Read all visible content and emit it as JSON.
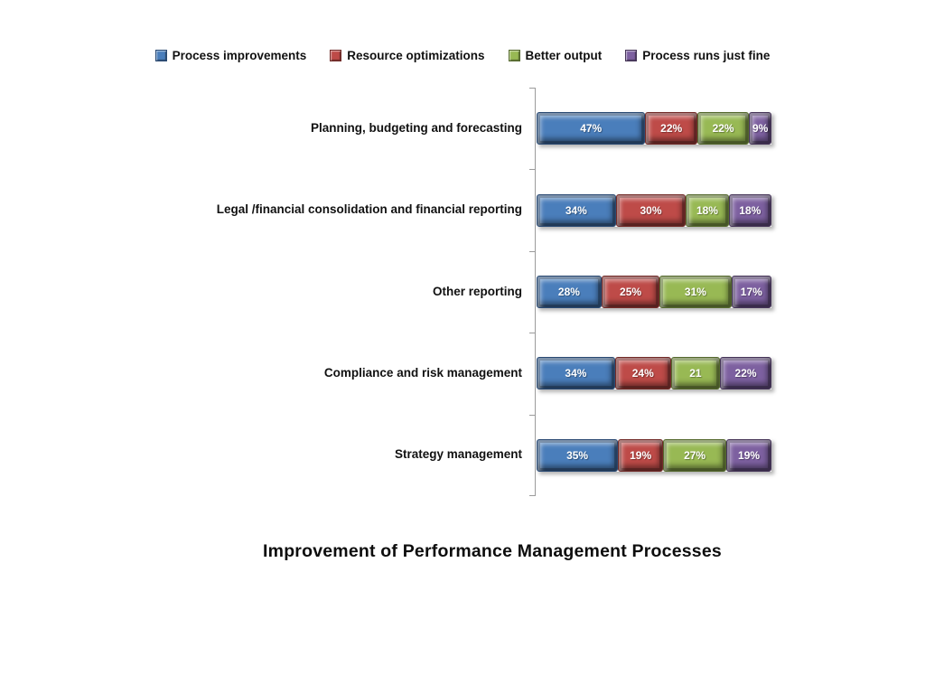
{
  "chart_data": {
    "type": "bar",
    "variant": "stacked-horizontal",
    "title": "Improvement of Performance Management Processes",
    "legend_position": "top",
    "grid": false,
    "xlim": [
      0,
      100
    ],
    "axis_color": "#9b9b9b",
    "categories": [
      "Planning, budgeting and forecasting",
      "Legal /financial consolidation and financial reporting",
      "Other reporting",
      "Compliance and risk management",
      "Strategy management"
    ],
    "series": [
      {
        "name": "Process improvements",
        "color": "#4A7EBB",
        "border_color": "#2A4A73",
        "values": [
          47,
          34,
          28,
          34,
          35
        ],
        "labels": [
          "47%",
          "34%",
          "28%",
          "34%",
          "35%"
        ]
      },
      {
        "name": "Resource optimizations",
        "color": "#BE4B48",
        "border_color": "#722B28",
        "values": [
          22,
          30,
          25,
          24,
          19
        ],
        "labels": [
          "22%",
          "30%",
          "25%",
          "24%",
          "19%"
        ]
      },
      {
        "name": "Better output",
        "color": "#98B954",
        "border_color": "#55692E",
        "values": [
          22,
          18,
          31,
          21,
          27
        ],
        "labels": [
          "22%",
          "18%",
          "31%",
          "21",
          "27%"
        ]
      },
      {
        "name": "Process runs just fine",
        "color": "#7D60A0",
        "border_color": "#463558",
        "values": [
          9,
          18,
          17,
          22,
          19
        ],
        "labels": [
          "9%",
          "18%",
          "17%",
          "22%",
          "19%"
        ]
      }
    ]
  }
}
